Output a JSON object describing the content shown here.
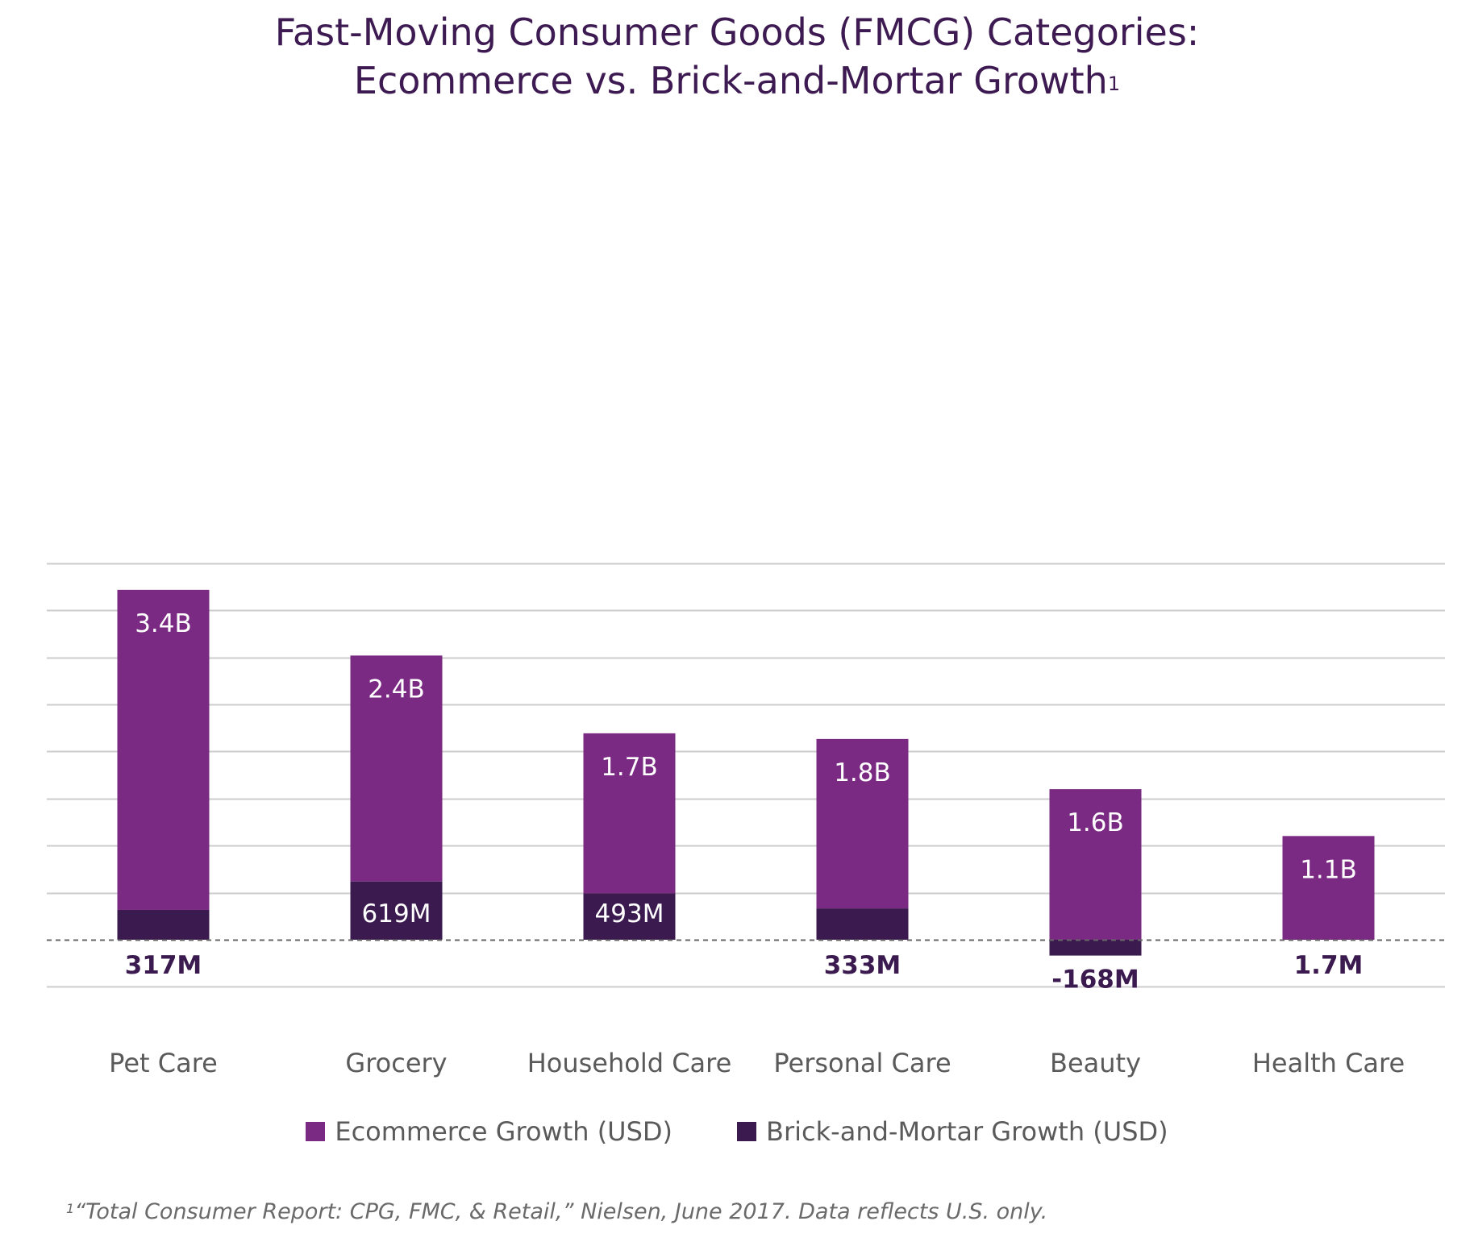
{
  "title": {
    "line1": "Fast-Moving Consumer Goods (FMCG) Categories:",
    "line2": "Ecommerce vs. Brick-and-Mortar Growth",
    "superscript": "1"
  },
  "footnote": {
    "marker": "1",
    "text": "“Total Consumer Report: CPG, FMC, & Retail,” Nielsen, June 2017. Data reflects U.S. only."
  },
  "colors": {
    "ecommerce": "#7a2a82",
    "brick": "#3b1a4f",
    "grid": "#cccccc",
    "category_text": "#5a5a5a"
  },
  "chart_data": {
    "type": "bar",
    "stacked": true,
    "unit": "USD",
    "categories": [
      "Pet Care",
      "Grocery",
      "Household Care",
      "Personal Care",
      "Beauty",
      "Health Care"
    ],
    "series": [
      {
        "name": "Ecommerce Growth (USD)",
        "values": [
          3.4,
          2.4,
          1.7,
          1.8,
          1.6,
          1.1
        ],
        "labels": [
          "3.4B",
          "2.4B",
          "1.7B",
          "1.8B",
          "1.6B",
          "1.1B"
        ]
      },
      {
        "name": "Brick-and-Mortar Growth (USD)",
        "values": [
          0.317,
          0.619,
          0.493,
          0.333,
          -0.168,
          0.0017
        ],
        "labels": [
          "317M",
          "619M",
          "493M",
          "333M",
          "-168M",
          "1.7M"
        ]
      }
    ],
    "ylim": [
      -0.5,
      4.0
    ],
    "grid": true,
    "legend_position": "bottom"
  }
}
